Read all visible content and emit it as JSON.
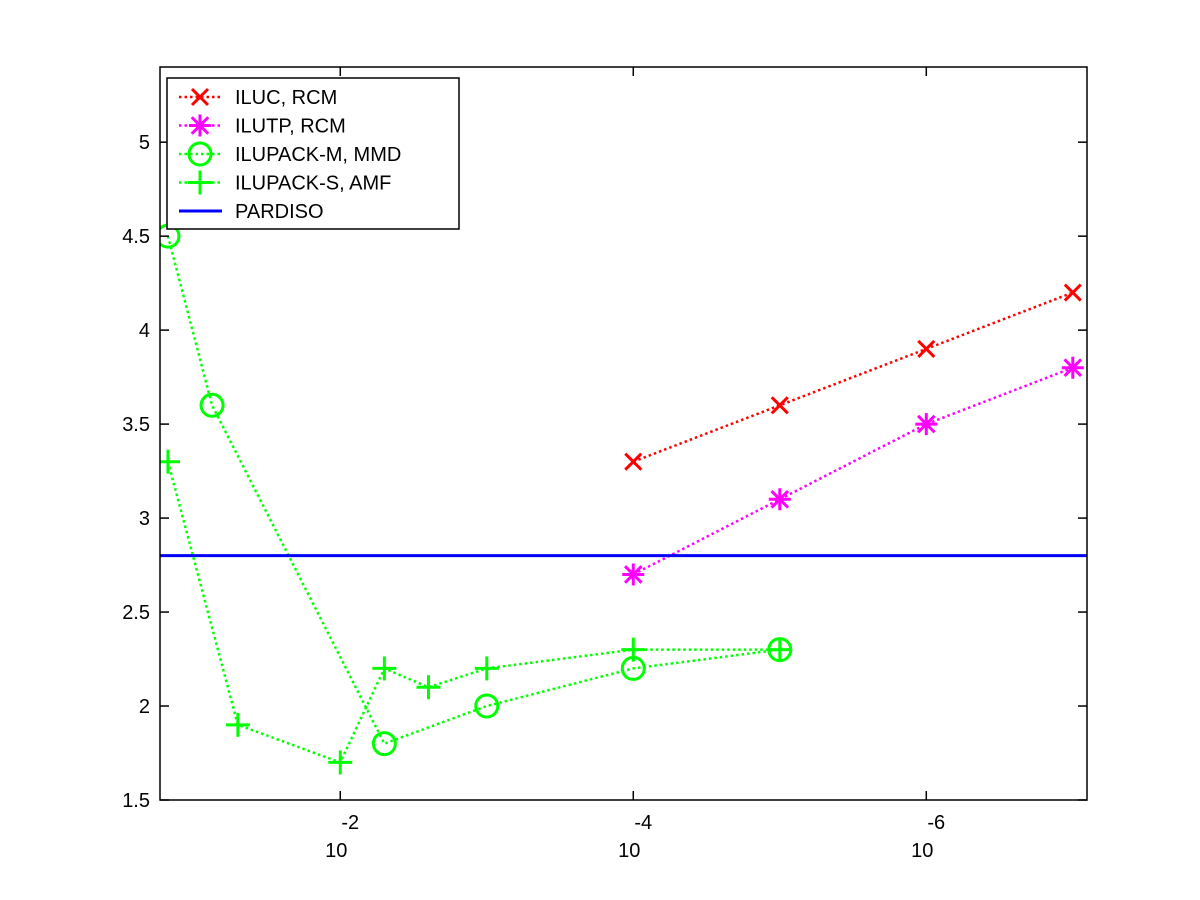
{
  "chart_data": {
    "type": "line",
    "title": "",
    "xlabel": "",
    "ylabel": "",
    "x_scale": "log",
    "x_reversed": true,
    "xlim": [
      0.17,
      8e-08
    ],
    "ylim": [
      1.5,
      5.4
    ],
    "x_ticks": [
      {
        "value": 0.01,
        "base": "10",
        "exp": "-2"
      },
      {
        "value": 0.0001,
        "base": "10",
        "exp": "-4"
      },
      {
        "value": 1e-06,
        "base": "10",
        "exp": "-6"
      }
    ],
    "y_ticks": [
      "1.5",
      "2",
      "2.5",
      "3",
      "3.5",
      "4",
      "4.5",
      "5"
    ],
    "legend_position": "top-left",
    "series": [
      {
        "name": "ILUC, RCM",
        "color": "#ff0000",
        "marker": "x",
        "linestyle": "dotted",
        "points": [
          [
            0.0001,
            3.3
          ],
          [
            1e-05,
            3.6
          ],
          [
            1e-06,
            3.9
          ],
          [
            1e-07,
            4.2
          ]
        ]
      },
      {
        "name": "ILUTP, RCM",
        "color": "#ff00ff",
        "marker": "star",
        "linestyle": "dotted",
        "points": [
          [
            0.0001,
            2.7
          ],
          [
            1e-05,
            3.1
          ],
          [
            1e-06,
            3.5
          ],
          [
            1e-07,
            3.8
          ]
        ]
      },
      {
        "name": "ILUPACK-M, MMD",
        "color": "#00ff00",
        "marker": "circle",
        "linestyle": "dotted",
        "points": [
          [
            0.15,
            4.5
          ],
          [
            0.075,
            3.6
          ],
          [
            0.005,
            1.8
          ],
          [
            0.001,
            2.0
          ],
          [
            0.0001,
            2.2
          ],
          [
            1e-05,
            2.3
          ]
        ]
      },
      {
        "name": "ILUPACK-S, AMF",
        "color": "#00ff00",
        "marker": "plus",
        "linestyle": "dotted",
        "points": [
          [
            0.15,
            3.3
          ],
          [
            0.05,
            1.9
          ],
          [
            0.01,
            1.7
          ],
          [
            0.005,
            2.2
          ],
          [
            0.0025,
            2.1
          ],
          [
            0.001,
            2.2
          ],
          [
            0.0001,
            2.3
          ],
          [
            1e-05,
            2.3
          ]
        ]
      },
      {
        "name": "PARDISO",
        "color": "#0000ff",
        "marker": "none",
        "linestyle": "solid",
        "points": [
          [
            0.17,
            2.8
          ],
          [
            8e-08,
            2.8
          ]
        ]
      }
    ]
  }
}
